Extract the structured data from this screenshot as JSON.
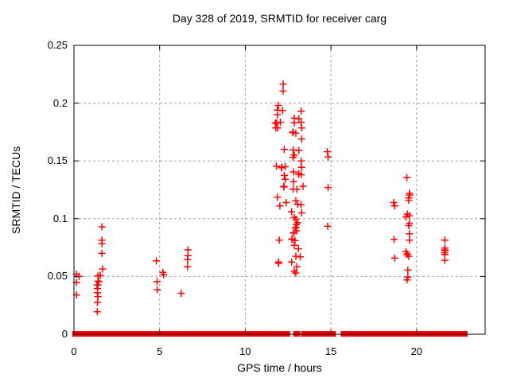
{
  "chart_data": {
    "type": "scatter",
    "title": "Day 328 of 2019, SRMTID for receiver carg",
    "xlabel": "GPS time / hours",
    "ylabel": "SRMTID / TECUs",
    "xlim": [
      0,
      24
    ],
    "ylim": [
      0,
      0.25
    ],
    "xticks": [
      0,
      5,
      10,
      15,
      20
    ],
    "yticks": [
      0,
      0.05,
      0.1,
      0.15,
      0.2,
      0.25
    ],
    "grid": true,
    "legend_position": "none",
    "marker": "plus",
    "marker_color": "#ff0000",
    "grid_color": "#a0a0a0",
    "border_color": "#000000",
    "points": [
      [
        0.15,
        0.052
      ],
      [
        0.3,
        0.05
      ],
      [
        0.15,
        0.045
      ],
      [
        0.15,
        0.034
      ],
      [
        1.63,
        0.093
      ],
      [
        1.63,
        0.0815
      ],
      [
        1.63,
        0.0785
      ],
      [
        1.63,
        0.07
      ],
      [
        1.67,
        0.0565
      ],
      [
        1.53,
        0.051
      ],
      [
        1.4,
        0.0505
      ],
      [
        1.42,
        0.046
      ],
      [
        1.45,
        0.0455
      ],
      [
        1.34,
        0.0425
      ],
      [
        1.4,
        0.0425
      ],
      [
        1.37,
        0.0395
      ],
      [
        1.37,
        0.036
      ],
      [
        1.4,
        0.0325
      ],
      [
        1.37,
        0.0275
      ],
      [
        1.36,
        0.0195
      ],
      [
        4.81,
        0.0635
      ],
      [
        5.19,
        0.0535
      ],
      [
        5.23,
        0.0515
      ],
      [
        4.85,
        0.0455
      ],
      [
        4.87,
        0.0385
      ],
      [
        6.26,
        0.0355
      ],
      [
        6.65,
        0.073
      ],
      [
        6.65,
        0.068
      ],
      [
        6.63,
        0.0645
      ],
      [
        6.63,
        0.0585
      ],
      [
        12.21,
        0.2165
      ],
      [
        12.21,
        0.2105
      ],
      [
        11.93,
        0.198
      ],
      [
        11.87,
        0.194
      ],
      [
        12.18,
        0.1935
      ],
      [
        11.87,
        0.19
      ],
      [
        13.26,
        0.193
      ],
      [
        12.86,
        0.187
      ],
      [
        13.13,
        0.1865
      ],
      [
        13.26,
        0.1835
      ],
      [
        11.82,
        0.183
      ],
      [
        12.05,
        0.1835
      ],
      [
        11.75,
        0.1825
      ],
      [
        12.86,
        0.183
      ],
      [
        11.78,
        0.1785
      ],
      [
        11.9,
        0.1785
      ],
      [
        13.29,
        0.1785
      ],
      [
        12.79,
        0.175
      ],
      [
        12.77,
        0.1745
      ],
      [
        12.95,
        0.174
      ],
      [
        13.29,
        0.169
      ],
      [
        12.28,
        0.16
      ],
      [
        12.79,
        0.1595
      ],
      [
        13.13,
        0.159
      ],
      [
        12.86,
        0.155
      ],
      [
        12.79,
        0.153
      ],
      [
        11.82,
        0.1455
      ],
      [
        12.13,
        0.1445
      ],
      [
        12.11,
        0.144
      ],
      [
        12.33,
        0.145
      ],
      [
        13.26,
        0.15
      ],
      [
        13.29,
        0.1445
      ],
      [
        12.82,
        0.1405
      ],
      [
        13.13,
        0.139
      ],
      [
        13.11,
        0.1385
      ],
      [
        13.26,
        0.138
      ],
      [
        12.28,
        0.1375
      ],
      [
        12.33,
        0.134
      ],
      [
        12.82,
        0.132
      ],
      [
        13.37,
        0.128
      ],
      [
        12.24,
        0.128
      ],
      [
        12.26,
        0.1275
      ],
      [
        12.79,
        0.1255
      ],
      [
        13.01,
        0.1255
      ],
      [
        11.87,
        0.1185
      ],
      [
        12.39,
        0.114
      ],
      [
        12.02,
        0.111
      ],
      [
        12.95,
        0.1155
      ],
      [
        13.06,
        0.1125
      ],
      [
        13.26,
        0.112
      ],
      [
        12.7,
        0.106
      ],
      [
        13.29,
        0.105
      ],
      [
        12.86,
        0.101
      ],
      [
        12.95,
        0.0995
      ],
      [
        13.06,
        0.0965
      ],
      [
        12.99,
        0.095
      ],
      [
        12.95,
        0.0925
      ],
      [
        12.93,
        0.092
      ],
      [
        12.99,
        0.0895
      ],
      [
        12.82,
        0.0875
      ],
      [
        12.84,
        0.088
      ],
      [
        11.98,
        0.0815
      ],
      [
        12.74,
        0.082
      ],
      [
        12.72,
        0.0825
      ],
      [
        12.9,
        0.081
      ],
      [
        12.86,
        0.077
      ],
      [
        13.1,
        0.074
      ],
      [
        12.95,
        0.0675
      ],
      [
        13.21,
        0.067
      ],
      [
        11.93,
        0.0625
      ],
      [
        11.95,
        0.0615
      ],
      [
        12.7,
        0.0625
      ],
      [
        13.01,
        0.0585
      ],
      [
        12.86,
        0.0545
      ],
      [
        12.95,
        0.053
      ],
      [
        14.79,
        0.158
      ],
      [
        14.83,
        0.1535
      ],
      [
        14.83,
        0.127
      ],
      [
        14.81,
        0.0935
      ],
      [
        18.66,
        0.114
      ],
      [
        18.72,
        0.111
      ],
      [
        18.69,
        0.082
      ],
      [
        18.72,
        0.066
      ],
      [
        19.43,
        0.1355
      ],
      [
        19.58,
        0.122
      ],
      [
        19.6,
        0.1205
      ],
      [
        19.54,
        0.118
      ],
      [
        19.54,
        0.116
      ],
      [
        19.46,
        0.104
      ],
      [
        19.58,
        0.1025
      ],
      [
        19.38,
        0.1015
      ],
      [
        19.58,
        0.096
      ],
      [
        19.54,
        0.094
      ],
      [
        19.58,
        0.087
      ],
      [
        19.58,
        0.0815
      ],
      [
        19.38,
        0.0715
      ],
      [
        19.46,
        0.0695
      ],
      [
        19.44,
        0.069
      ],
      [
        19.54,
        0.0675
      ],
      [
        19.49,
        0.0555
      ],
      [
        19.49,
        0.0495
      ],
      [
        19.44,
        0.047
      ],
      [
        21.65,
        0.0815
      ],
      [
        21.65,
        0.0745
      ],
      [
        21.63,
        0.073
      ],
      [
        21.67,
        0.0725
      ],
      [
        21.63,
        0.0705
      ],
      [
        21.65,
        0.069
      ],
      [
        21.65,
        0.064
      ]
    ],
    "baseline_segments": [
      [
        0.0,
        0.08
      ],
      [
        0.12,
        0.2
      ],
      [
        0.24,
        0.32
      ],
      [
        0.36,
        0.44
      ],
      [
        0.48,
        0.52
      ],
      [
        0.65,
        1.54
      ],
      [
        1.68,
        2.04
      ],
      [
        2.11,
        2.26
      ],
      [
        2.33,
        2.42
      ],
      [
        2.51,
        3.29
      ],
      [
        3.35,
        4.09
      ],
      [
        4.16,
        4.86
      ],
      [
        4.93,
        6.06
      ],
      [
        6.17,
        6.63
      ],
      [
        6.7,
        8.41
      ],
      [
        8.52,
        8.98
      ],
      [
        9.07,
        9.54
      ],
      [
        9.69,
        10.26
      ],
      [
        10.37,
        10.55
      ],
      [
        10.62,
        11.19
      ],
      [
        11.3,
        11.54
      ],
      [
        11.62,
        12.07
      ],
      [
        12.16,
        12.38
      ],
      [
        12.44,
        12.53
      ],
      [
        12.89,
        13.12
      ],
      [
        13.35,
        13.89
      ],
      [
        14.0,
        14.35
      ],
      [
        14.47,
        14.81
      ],
      [
        14.94,
        15.2
      ],
      [
        15.66,
        16.25
      ],
      [
        16.32,
        16.42
      ],
      [
        16.48,
        16.58
      ],
      [
        16.64,
        18.32
      ],
      [
        18.41,
        18.55
      ],
      [
        18.62,
        18.82
      ],
      [
        18.93,
        19.64
      ],
      [
        19.75,
        19.98
      ],
      [
        20.02,
        20.88
      ],
      [
        20.99,
        21.22
      ],
      [
        21.3,
        21.56
      ],
      [
        21.65,
        21.96
      ],
      [
        22.07,
        22.22
      ],
      [
        22.33,
        22.58
      ],
      [
        22.7,
        22.88
      ]
    ]
  }
}
